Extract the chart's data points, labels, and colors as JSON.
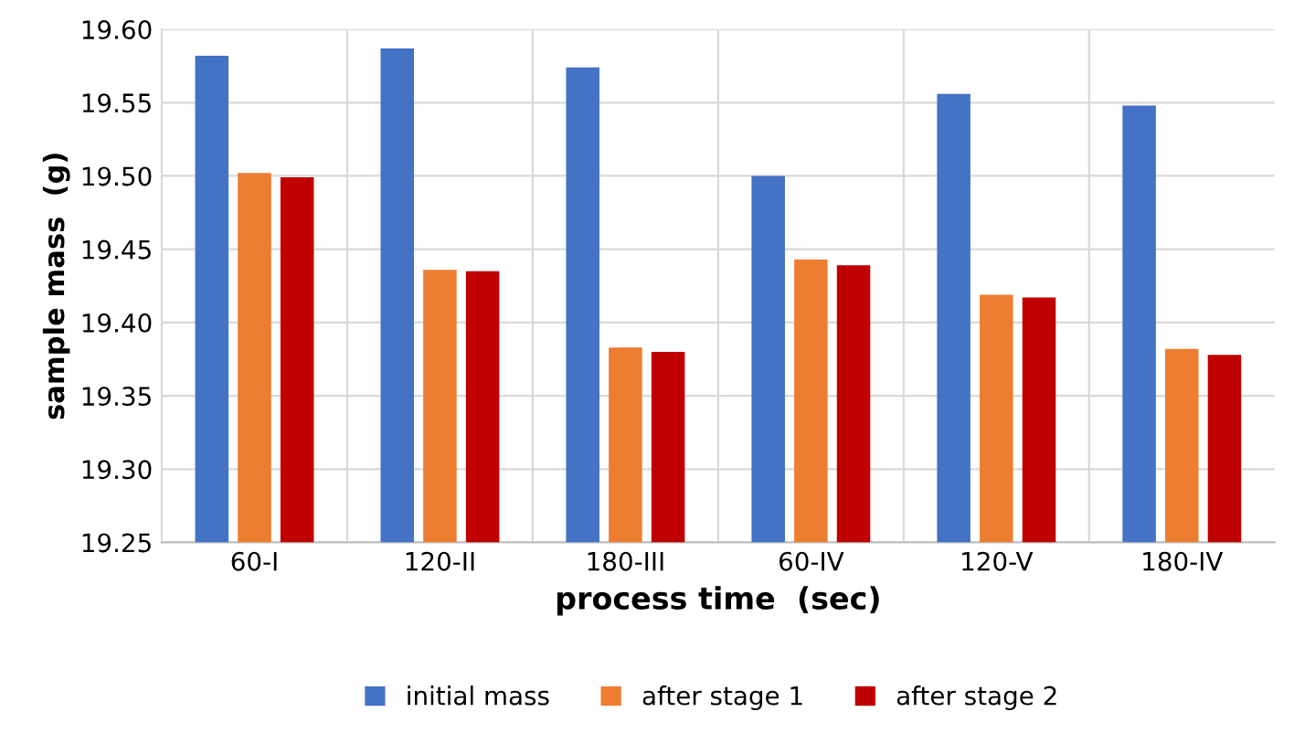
{
  "chart_data": {
    "type": "bar",
    "xlabel": "process time  (sec)",
    "ylabel": "sample mass  (g)",
    "categories": [
      "60-I",
      "120-II",
      "180-III",
      "60-IV",
      "120-V",
      "180-IV"
    ],
    "series": [
      {
        "name": "initial mass",
        "color": "#4472c4",
        "values": [
          19.582,
          19.587,
          19.574,
          19.5,
          19.556,
          19.548
        ]
      },
      {
        "name": "after stage 1",
        "color": "#ed7d31",
        "values": [
          19.502,
          19.436,
          19.383,
          19.443,
          19.419,
          19.382
        ]
      },
      {
        "name": "after stage 2",
        "color": "#c00000",
        "values": [
          19.499,
          19.435,
          19.38,
          19.439,
          19.417,
          19.378
        ]
      }
    ],
    "ylim": [
      19.25,
      19.6
    ],
    "yticks": [
      {
        "value": 19.25,
        "label": "19.25"
      },
      {
        "value": 19.3,
        "label": "19.30"
      },
      {
        "value": 19.35,
        "label": "19.35"
      },
      {
        "value": 19.4,
        "label": "19.40"
      },
      {
        "value": 19.45,
        "label": "19.45"
      },
      {
        "value": 19.5,
        "label": "19.50"
      },
      {
        "value": 19.55,
        "label": "19.55"
      },
      {
        "value": 19.6,
        "label": "19.60"
      }
    ],
    "grid": true,
    "legend": "bottom"
  }
}
